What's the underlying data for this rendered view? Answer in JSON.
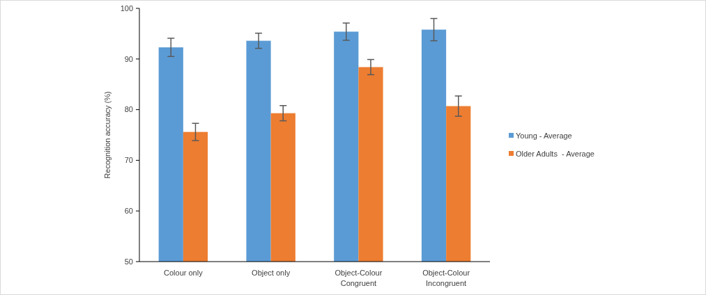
{
  "chart_data": {
    "type": "bar",
    "ylabel": "Recognition  accuracy (%)",
    "categories": [
      "Colour only",
      "Object only",
      "Object-Colour Congruent",
      "Object-Colour Incongruent"
    ],
    "series": [
      {
        "name": "Young - Average",
        "color": "#5b9bd5",
        "values": [
          92.3,
          93.6,
          95.4,
          95.8
        ],
        "errors": [
          1.8,
          1.5,
          1.7,
          2.2
        ]
      },
      {
        "name": "Older Adults  - Average",
        "color": "#ed7d31",
        "values": [
          75.6,
          79.3,
          88.4,
          80.7
        ],
        "errors": [
          1.7,
          1.5,
          1.5,
          2
        ]
      }
    ],
    "ylim": [
      50,
      100
    ],
    "yticks": [
      50,
      60,
      70,
      80,
      90,
      100
    ],
    "grid": false,
    "legend": "right"
  }
}
